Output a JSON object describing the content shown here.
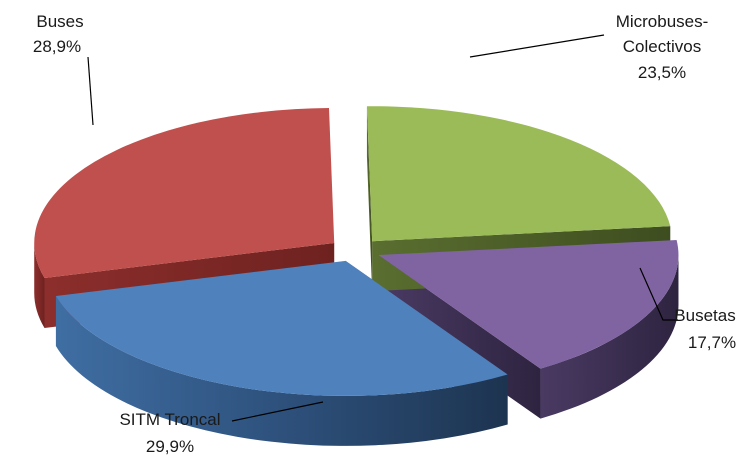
{
  "chart_data": {
    "type": "pie",
    "style": "3d-exploded",
    "legend": "none",
    "slices": [
      {
        "name": "Microbuses-Colectivos",
        "label_lines": [
          "Microbuses-",
          "Colectivos"
        ],
        "value_label": "23,5%",
        "value": 23.5,
        "color": "#9bbb59"
      },
      {
        "name": "Busetas",
        "label_lines": [
          "Busetas"
        ],
        "value_label": "17,7%",
        "value": 17.7,
        "color": "#8064a2"
      },
      {
        "name": "SITM Troncal",
        "label_lines": [
          "SITM Troncal"
        ],
        "value_label": "29,9%",
        "value": 29.9,
        "color": "#4f81bd"
      },
      {
        "name": "Buses",
        "label_lines": [
          "Buses"
        ],
        "value_label": "28,9%",
        "value": 28.9,
        "color": "#c0504d"
      }
    ]
  }
}
